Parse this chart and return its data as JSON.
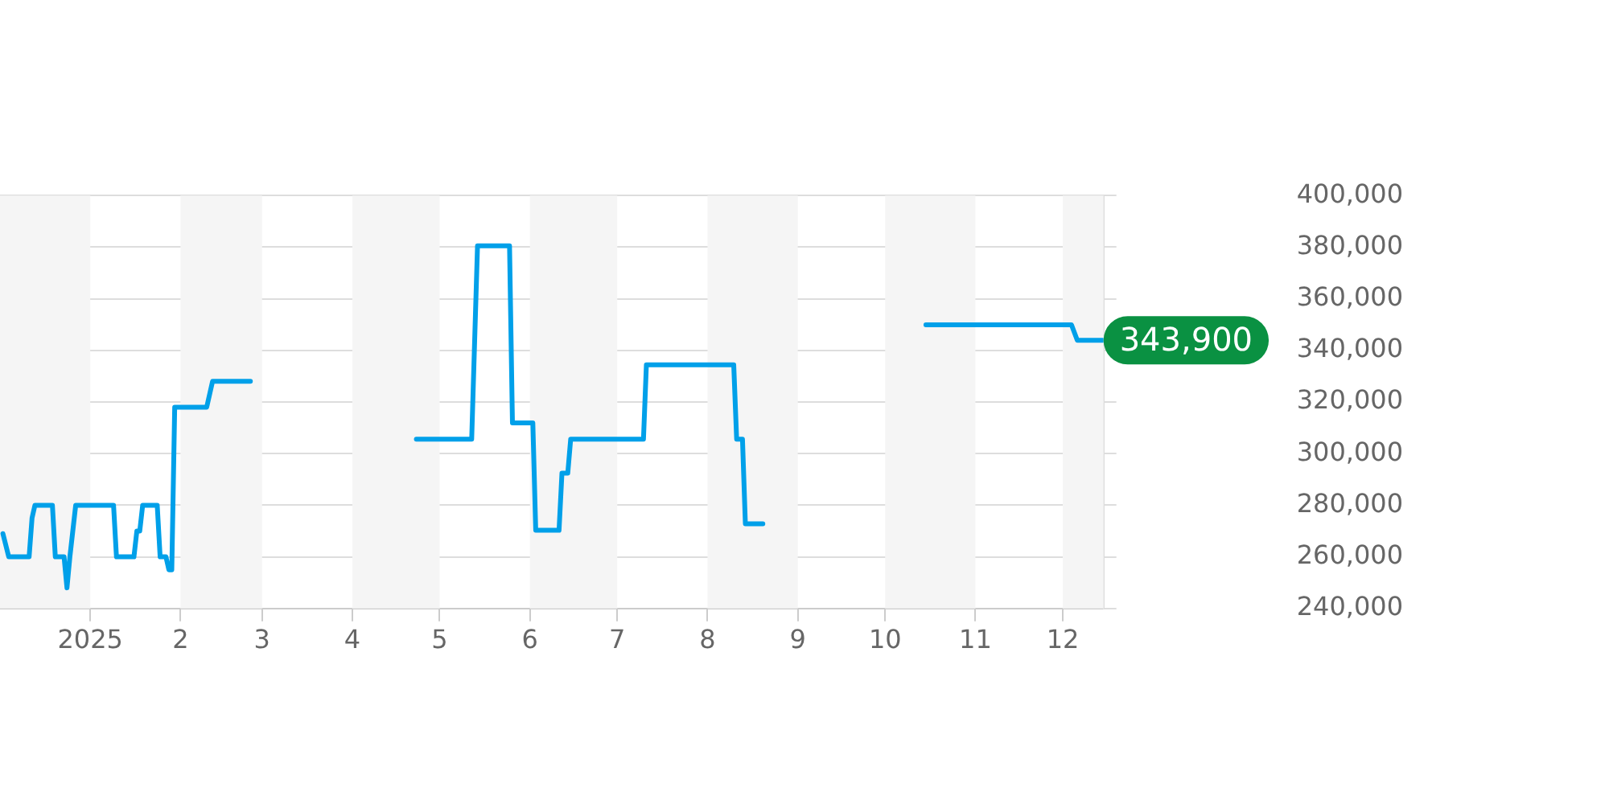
{
  "chart_data": {
    "type": "line",
    "xlim": [
      "2024-12-01",
      "2025-12-15"
    ],
    "xticks": [
      {
        "value": "2025-01-01",
        "label": "2025"
      },
      {
        "value": "2025-02-01",
        "label": "2"
      },
      {
        "value": "2025-03-01",
        "label": "3"
      },
      {
        "value": "2025-04-01",
        "label": "4"
      },
      {
        "value": "2025-05-01",
        "label": "5"
      },
      {
        "value": "2025-06-01",
        "label": "6"
      },
      {
        "value": "2025-07-01",
        "label": "7"
      },
      {
        "value": "2025-08-01",
        "label": "8"
      },
      {
        "value": "2025-09-01",
        "label": "9"
      },
      {
        "value": "2025-10-01",
        "label": "10"
      },
      {
        "value": "2025-11-01",
        "label": "11"
      },
      {
        "value": "2025-12-01",
        "label": "12"
      }
    ],
    "ylim": [
      240000,
      400000
    ],
    "yticks": [
      {
        "value": 240000,
        "label": "240,000"
      },
      {
        "value": 260000,
        "label": "260,000"
      },
      {
        "value": 280000,
        "label": "280,000"
      },
      {
        "value": 300000,
        "label": "300,000"
      },
      {
        "value": 320000,
        "label": "320,000"
      },
      {
        "value": 340000,
        "label": "340,000"
      },
      {
        "value": 360000,
        "label": "360,000"
      },
      {
        "value": 380000,
        "label": "380,000"
      },
      {
        "value": 400000,
        "label": "400,000"
      }
    ],
    "grid": "y",
    "legend": false,
    "marker": "none",
    "line_style": "solid",
    "bands": [
      {
        "axis": "x",
        "from": "2024-12-01",
        "to": "2025-01-01",
        "color": "#f5f5f5"
      },
      {
        "axis": "x",
        "from": "2025-02-01",
        "to": "2025-03-01",
        "color": "#f5f5f5"
      },
      {
        "axis": "x",
        "from": "2025-04-01",
        "to": "2025-05-01",
        "color": "#f5f5f5"
      },
      {
        "axis": "x",
        "from": "2025-06-01",
        "to": "2025-07-01",
        "color": "#f5f5f5"
      },
      {
        "axis": "x",
        "from": "2025-08-01",
        "to": "2025-09-01",
        "color": "#f5f5f5"
      },
      {
        "axis": "x",
        "from": "2025-10-01",
        "to": "2025-11-01",
        "color": "#f5f5f5"
      },
      {
        "axis": "x",
        "from": "2025-12-01",
        "to": "2025-12-15",
        "color": "#f5f5f5"
      }
    ],
    "annotations": [
      {
        "text": "343,900",
        "x": "2025-12-15",
        "y": 343900
      }
    ],
    "series": [
      {
        "color": "#00a0e9",
        "x": [
          "2024-12-02",
          "2024-12-04",
          "2024-12-11",
          "2024-12-12",
          "2024-12-13",
          "2024-12-19",
          "2024-12-20",
          "2024-12-23",
          "2024-12-24",
          "2024-12-25",
          "2024-12-27",
          "2025-01-09",
          "2025-01-10",
          "2025-01-16",
          "2025-01-17",
          "2025-01-18",
          "2025-01-19",
          "2025-01-24",
          "2025-01-25",
          "2025-01-27",
          "2025-01-28",
          "2025-01-29",
          "2025-01-30",
          "2025-02-10",
          "2025-02-12",
          "2025-02-25",
          "2025-03-20",
          "2025-04-23",
          "2025-05-12",
          "2025-05-14",
          "2025-05-25",
          "2025-05-26",
          "2025-06-02",
          "2025-06-03",
          "2025-06-11",
          "2025-06-12",
          "2025-06-14",
          "2025-06-15",
          "2025-07-10",
          "2025-07-11",
          "2025-08-10",
          "2025-08-11",
          "2025-08-13",
          "2025-08-14",
          "2025-08-20",
          "2025-09-20",
          "2025-10-15",
          "2025-12-04",
          "2025-12-06",
          "2025-12-15"
        ],
        "values": [
          269000,
          260000,
          260000,
          275000,
          280000,
          280000,
          260000,
          260000,
          248000,
          260000,
          280000,
          280000,
          260000,
          260000,
          270000,
          270000,
          280000,
          280000,
          260000,
          260000,
          255000,
          255000,
          318000,
          318000,
          328000,
          328000,
          null,
          305600,
          305600,
          380500,
          380500,
          311900,
          311900,
          270300,
          270300,
          292400,
          292400,
          305600,
          305600,
          334400,
          334400,
          305600,
          305600,
          272800,
          272800,
          null,
          349900,
          349900,
          343900,
          343900
        ]
      }
    ]
  }
}
